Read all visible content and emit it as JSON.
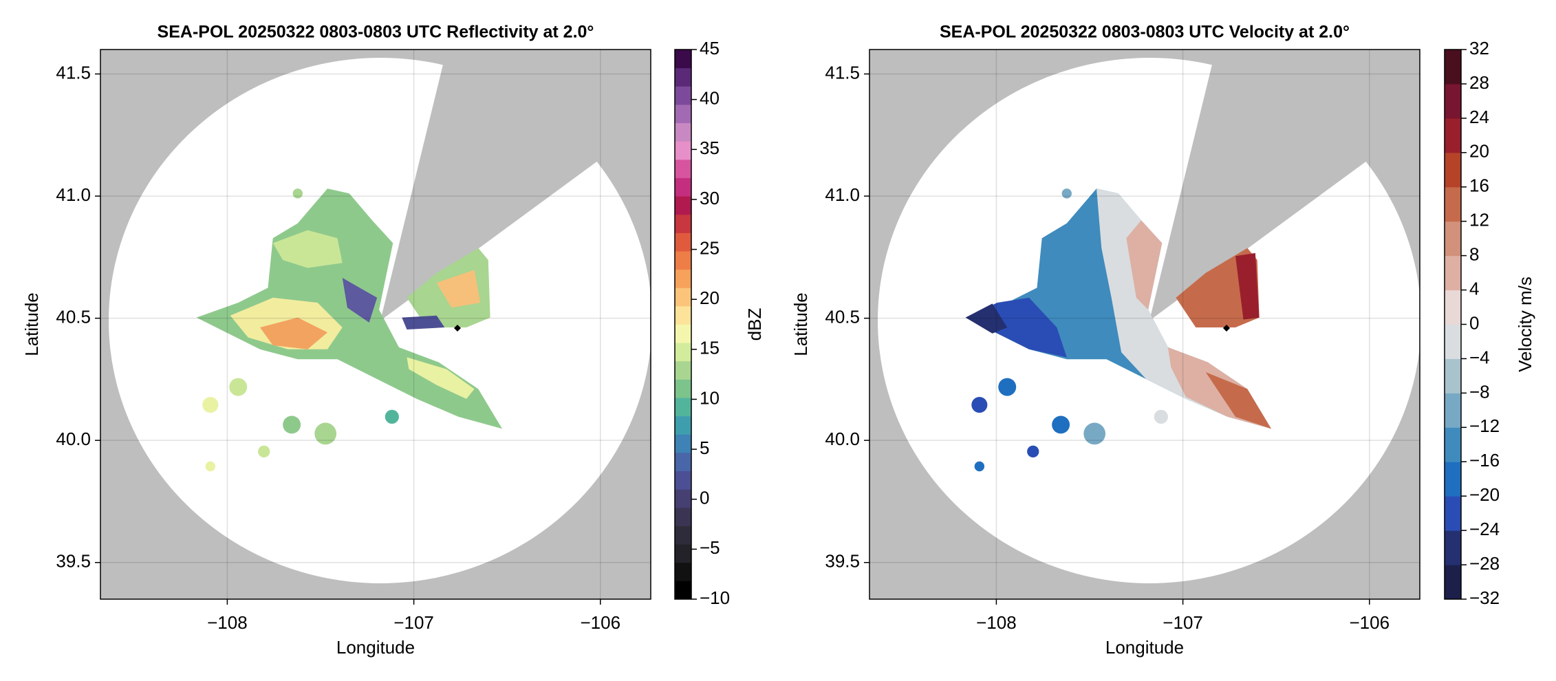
{
  "chart_data": [
    {
      "type": "radar",
      "title": "SEA-POL 20250322 0803-0803 UTC Reflectivity at 2.0°",
      "xlabel": "Longitude",
      "ylabel": "Latitude",
      "xlim": [
        -108.68,
        -105.73
      ],
      "ylim": [
        39.35,
        41.6
      ],
      "xticks": [
        {
          "value": -108,
          "label": "−108"
        },
        {
          "value": -107,
          "label": "−107"
        },
        {
          "value": -106,
          "label": "−106"
        }
      ],
      "yticks": [
        39.5,
        {
          "value": 40,
          "label": "40.0"
        },
        40.5,
        {
          "value": 41,
          "label": "41.0"
        },
        41.5
      ],
      "grid": true,
      "colorbar": {
        "label": "dBZ",
        "lim": [
          -10,
          45
        ],
        "ticks": [
          {
            "value": -10,
            "label": "−10"
          },
          {
            "value": -5,
            "label": "−5"
          },
          0,
          5,
          10,
          15,
          20,
          25,
          30,
          35,
          40,
          45
        ],
        "colors": [
          "#000000",
          "#111111",
          "#222228",
          "#2e2c3a",
          "#3b3553",
          "#463f72",
          "#4d4f95",
          "#4866a8",
          "#3f82b5",
          "#3f9eae",
          "#53b49c",
          "#7cc48c",
          "#a8d590",
          "#d3eb9c",
          "#f4f6ad",
          "#fde39a",
          "#fbc47a",
          "#f6a15c",
          "#ee7e48",
          "#e05a3e",
          "#c8363f",
          "#b01a4f",
          "#c42e7f",
          "#d6559e",
          "#e78fc8",
          "#c889c2",
          "#a26ab3",
          "#7c4a9a",
          "#5a2a78",
          "#3b0a4a"
        ]
      }
    },
    {
      "type": "radar",
      "title": "SEA-POL 20250322 0803-0803 UTC Velocity at 2.0°",
      "xlabel": "Longitude",
      "ylabel": "Latitude",
      "xlim": [
        -108.68,
        -105.73
      ],
      "ylim": [
        39.35,
        41.6
      ],
      "xticks": [
        {
          "value": -108,
          "label": "−108"
        },
        {
          "value": -107,
          "label": "−107"
        },
        {
          "value": -106,
          "label": "−106"
        }
      ],
      "yticks": [
        39.5,
        {
          "value": 40,
          "label": "40.0"
        },
        40.5,
        {
          "value": 41,
          "label": "41.0"
        },
        41.5
      ],
      "grid": true,
      "colorbar": {
        "label": "Velocity m/s",
        "lim": [
          -32,
          32
        ],
        "ticks": [
          {
            "value": -32,
            "label": "−32"
          },
          {
            "value": -28,
            "label": "−28"
          },
          {
            "value": -24,
            "label": "−24"
          },
          {
            "value": -20,
            "label": "−20"
          },
          {
            "value": -16,
            "label": "−16"
          },
          {
            "value": -12,
            "label": "−12"
          },
          {
            "value": -8,
            "label": "−8"
          },
          {
            "value": -4,
            "label": "−4"
          },
          0,
          4,
          8,
          12,
          16,
          20,
          24,
          28,
          32
        ],
        "colors": [
          "#1b1f4a",
          "#243070",
          "#2a4db5",
          "#1f6fc0",
          "#3f8bbd",
          "#78a9c4",
          "#a9c3cd",
          "#d9dde0",
          "#e8d8d6",
          "#ddb0a3",
          "#d1917a",
          "#c56b4b",
          "#b54328",
          "#9a1f2d",
          "#781530",
          "#4a0f1e"
        ]
      }
    }
  ]
}
